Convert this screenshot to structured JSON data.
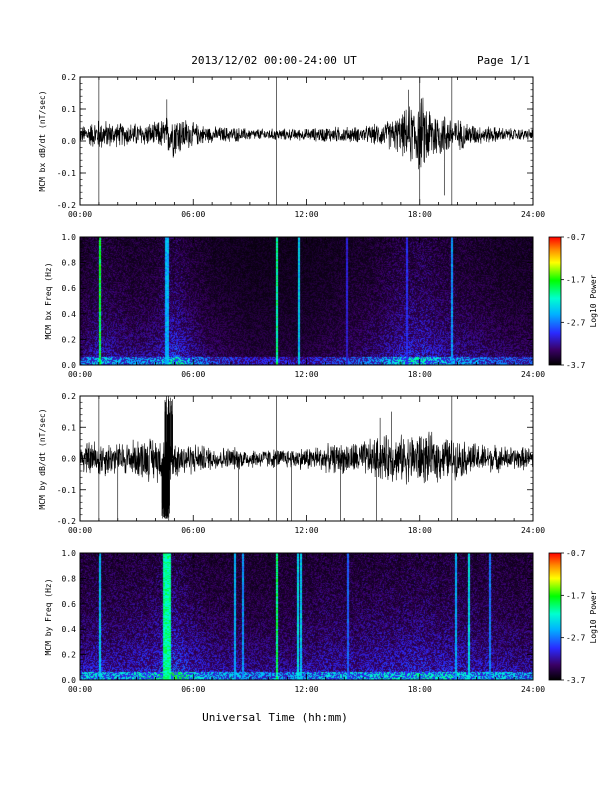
{
  "header": {
    "date_range": "2013/12/02  00:00-24:00 UT",
    "page": "Page 1/1"
  },
  "footer": {
    "xlabel": "Universal Time (hh:mm)"
  },
  "chart_data": [
    {
      "type": "line",
      "ylabel": "MCM bx dB/dt (nT/sec)",
      "xlim": [
        0,
        24
      ],
      "ylim": [
        -0.2,
        0.2
      ],
      "xticks": [
        "00:00",
        "06:00",
        "12:00",
        "18:00",
        "24:00"
      ],
      "yticks": [
        "-0.2",
        "-0.1",
        "0.0",
        "0.1",
        "0.2"
      ],
      "ytick_values": [
        -0.2,
        -0.1,
        0.0,
        0.1,
        0.2
      ],
      "series_hours": [
        0,
        1,
        2,
        3,
        4,
        5,
        6,
        7,
        8,
        9,
        10,
        11,
        12,
        13,
        14,
        15,
        16,
        17,
        18,
        19,
        20,
        21,
        22,
        23,
        24
      ],
      "envelope_amplitude": [
        0.02,
        0.04,
        0.03,
        0.03,
        0.03,
        0.06,
        0.03,
        0.02,
        0.02,
        0.015,
        0.015,
        0.015,
        0.015,
        0.02,
        0.02,
        0.02,
        0.03,
        0.05,
        0.1,
        0.06,
        0.04,
        0.025,
        0.02,
        0.015,
        0.015
      ],
      "baseline": 0.02,
      "spikes": [
        {
          "t": 1.0,
          "y": 0.2,
          "kind": "vline"
        },
        {
          "t": 10.4,
          "y": 0.2,
          "kind": "vline"
        },
        {
          "t": 18.0,
          "y": 0.2,
          "kind": "vline"
        },
        {
          "t": 19.7,
          "y": -0.2,
          "kind": "vline"
        },
        {
          "t": 4.6,
          "y": 0.13
        },
        {
          "t": 17.4,
          "y": 0.16
        },
        {
          "t": 19.3,
          "y": -0.17
        }
      ]
    },
    {
      "type": "heatmap",
      "ylabel": "MCM bx Freq (Hz)",
      "xlim": [
        0,
        24
      ],
      "ylim": [
        0.0,
        1.0
      ],
      "xticks": [
        "00:00",
        "06:00",
        "12:00",
        "18:00",
        "24:00"
      ],
      "yticks": [
        "0.0",
        "0.2",
        "0.4",
        "0.6",
        "0.8",
        "1.0"
      ],
      "ytick_values": [
        0.0,
        0.2,
        0.4,
        0.6,
        0.8,
        1.0
      ],
      "colorbar": {
        "label": "Log10 Power",
        "min": -3.7,
        "max": -0.7,
        "ticks": [
          "-0.7",
          "-1.7",
          "-2.7",
          "-3.7"
        ]
      },
      "activity_hours": [
        0,
        1,
        2,
        3,
        4,
        5,
        6,
        7,
        8,
        9,
        10,
        11,
        12,
        13,
        14,
        15,
        16,
        17,
        18,
        19,
        20,
        21,
        22,
        23,
        24
      ],
      "activity_level": [
        0.35,
        0.55,
        0.45,
        0.4,
        0.45,
        0.7,
        0.45,
        0.3,
        0.25,
        0.2,
        0.2,
        0.2,
        0.2,
        0.25,
        0.3,
        0.35,
        0.45,
        0.6,
        0.65,
        0.55,
        0.45,
        0.4,
        0.35,
        0.3,
        0.3
      ],
      "bright_lines_hours": [
        1.0,
        4.5,
        4.6,
        10.4,
        11.6,
        14.1,
        17.3,
        19.7
      ],
      "bright_line_power": [
        -1.7,
        -2.4,
        -2.4,
        -1.9,
        -2.3,
        -3.0,
        -2.9,
        -2.5
      ]
    },
    {
      "type": "line",
      "ylabel": "MCM by dB/dt (nT/sec)",
      "xlim": [
        0,
        24
      ],
      "ylim": [
        -0.2,
        0.2
      ],
      "xticks": [
        "00:00",
        "06:00",
        "12:00",
        "18:00",
        "24:00"
      ],
      "yticks": [
        "-0.2",
        "-0.1",
        "0.0",
        "0.1",
        "0.2"
      ],
      "ytick_values": [
        -0.2,
        -0.1,
        0.0,
        0.1,
        0.2
      ],
      "series_hours": [
        0,
        1,
        2,
        3,
        4,
        5,
        6,
        7,
        8,
        9,
        10,
        11,
        12,
        13,
        14,
        15,
        16,
        17,
        18,
        19,
        20,
        21,
        22,
        23,
        24
      ],
      "envelope_amplitude": [
        0.04,
        0.05,
        0.04,
        0.05,
        0.06,
        0.05,
        0.04,
        0.03,
        0.03,
        0.025,
        0.025,
        0.025,
        0.03,
        0.035,
        0.04,
        0.045,
        0.06,
        0.06,
        0.07,
        0.06,
        0.05,
        0.04,
        0.035,
        0.03,
        0.03
      ],
      "baseline": 0.0,
      "spikes": [
        {
          "t": 1.0,
          "y": 0.2,
          "kind": "vline"
        },
        {
          "t": 10.4,
          "y": 0.2,
          "kind": "vline"
        },
        {
          "t": 19.7,
          "y": 0.2,
          "kind": "vline"
        },
        {
          "t": 4.55,
          "y": -0.2,
          "kind": "burst"
        },
        {
          "t": 4.7,
          "y": 0.2,
          "kind": "burst"
        },
        {
          "t": 2.0,
          "y": -0.2
        },
        {
          "t": 8.4,
          "y": -0.2
        },
        {
          "t": 11.2,
          "y": -0.2
        },
        {
          "t": 13.8,
          "y": -0.2
        },
        {
          "t": 15.7,
          "y": -0.2
        },
        {
          "t": 16.5,
          "y": 0.15
        },
        {
          "t": 15.9,
          "y": 0.13
        }
      ]
    },
    {
      "type": "heatmap",
      "ylabel": "MCM by Freq (Hz)",
      "xlim": [
        0,
        24
      ],
      "ylim": [
        0.0,
        1.0
      ],
      "xticks": [
        "00:00",
        "06:00",
        "12:00",
        "18:00",
        "24:00"
      ],
      "yticks": [
        "0.0",
        "0.2",
        "0.4",
        "0.6",
        "0.8",
        "1.0"
      ],
      "ytick_values": [
        0.0,
        0.2,
        0.4,
        0.6,
        0.8,
        1.0
      ],
      "colorbar": {
        "label": "Log10 Power",
        "min": -3.7,
        "max": -0.7,
        "ticks": [
          "-0.7",
          "-1.7",
          "-2.7",
          "-3.7"
        ]
      },
      "activity_hours": [
        0,
        1,
        2,
        3,
        4,
        5,
        6,
        7,
        8,
        9,
        10,
        11,
        12,
        13,
        14,
        15,
        16,
        17,
        18,
        19,
        20,
        21,
        22,
        23,
        24
      ],
      "activity_level": [
        0.55,
        0.6,
        0.55,
        0.6,
        0.65,
        0.8,
        0.6,
        0.5,
        0.5,
        0.45,
        0.45,
        0.45,
        0.5,
        0.55,
        0.55,
        0.55,
        0.6,
        0.6,
        0.65,
        0.6,
        0.6,
        0.55,
        0.55,
        0.5,
        0.5
      ],
      "bright_lines_hours": [
        1.0,
        4.4,
        4.5,
        4.6,
        4.7,
        8.2,
        8.6,
        10.4,
        11.5,
        11.7,
        14.2,
        19.9,
        20.6,
        21.7
      ],
      "bright_line_power": [
        -2.3,
        -1.9,
        -1.9,
        -1.9,
        -1.9,
        -2.4,
        -2.5,
        -1.8,
        -2.2,
        -2.3,
        -2.7,
        -2.4,
        -2.2,
        -2.6
      ]
    }
  ]
}
